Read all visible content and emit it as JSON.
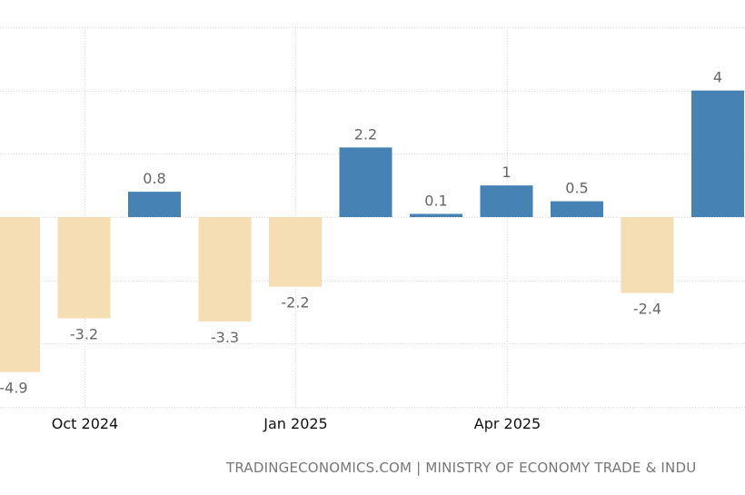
{
  "source_text": "TRADINGECONOMICS.COM | MINISTRY OF ECONOMY TRADE & INDU",
  "chart_data": {
    "type": "bar",
    "categories": [
      "2024-09",
      "2024-10",
      "2024-11",
      "2024-12",
      "2025-01",
      "2025-02",
      "2025-03",
      "2025-04",
      "2025-05",
      "2025-06",
      "2025-07"
    ],
    "x_tick_labels": [
      "Oct 2024",
      "Jan 2025",
      "Apr 2025"
    ],
    "x_tick_categories": [
      "2024-10",
      "2025-01",
      "2025-04"
    ],
    "series": [
      {
        "values": [
          -4.9,
          -3.2,
          0.8,
          -3.3,
          -2.2,
          2.2,
          0.1,
          1,
          0.5,
          -2.4,
          4
        ],
        "labels": [
          "-4.9",
          "-3.2",
          "0.8",
          "-3.3",
          "-2.2",
          "2.2",
          "0.1",
          "1",
          "0.5",
          "-2.4",
          "4"
        ]
      }
    ],
    "ylim": [
      -6,
      6
    ],
    "grid": true,
    "colors": {
      "positive": "#4682b4",
      "negative": "#f5deb3"
    },
    "title": "",
    "xlabel": "",
    "ylabel": ""
  }
}
